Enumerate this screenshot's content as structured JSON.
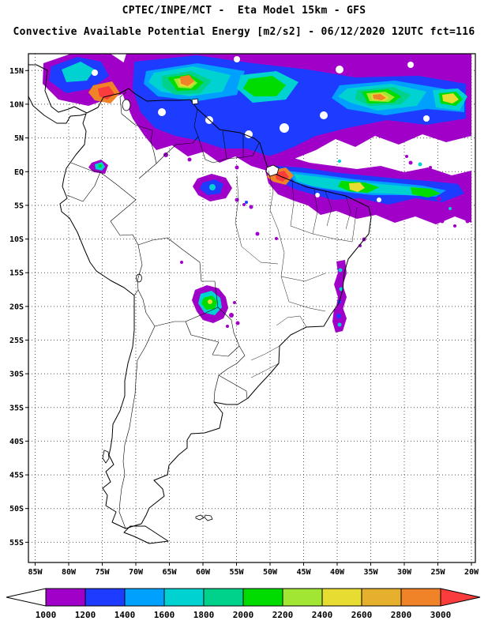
{
  "header": {
    "title": "CPTEC/INPE/MCT -  Eta Model 15km - GFS",
    "subtitle": "Convective Available Potential Energy [m2/s2] - 06/12/2020 12UTC fct=116"
  },
  "map": {
    "lat_ticks": [
      "15N",
      "10N",
      "5N",
      "EQ",
      "5S",
      "10S",
      "15S",
      "20S",
      "25S",
      "30S",
      "35S",
      "40S",
      "45S",
      "50S",
      "55S"
    ],
    "lon_ticks": [
      "85W",
      "80W",
      "75W",
      "70W",
      "65W",
      "60W",
      "55W",
      "50W",
      "45W",
      "40W",
      "35W",
      "30W",
      "25W",
      "20W"
    ]
  },
  "colorbar": {
    "tick_labels": [
      "1000",
      "1200",
      "1400",
      "1600",
      "1800",
      "2000",
      "2200",
      "2400",
      "2600",
      "2800",
      "3000"
    ],
    "segment_colors": [
      "#a000c8",
      "#1e3cff",
      "#00a0ff",
      "#00d2d2",
      "#00d28c",
      "#00dc00",
      "#a0e632",
      "#e6dc32",
      "#e6af2d",
      "#f08228"
    ],
    "below_min_color": "#ffffff",
    "above_max_color": "#fa3c3c",
    "outline_color": "#000000"
  },
  "chart_data": {
    "type": "filled-contour-map",
    "variable": "Convective Available Potential Energy",
    "units": "m2/s2",
    "model": "Eta Model 15km",
    "boundary_model": "GFS",
    "valid": "06/12/2020 12UTC",
    "forecast": "fct=116",
    "lon_range": [
      "85W",
      "20W"
    ],
    "lat_range": [
      "55S",
      "15N"
    ],
    "scale_levels": [
      1000,
      1200,
      1400,
      1600,
      1800,
      2000,
      2200,
      2400,
      2600,
      2800,
      3000
    ],
    "scale_colors": [
      "#a000c8",
      "#1e3cff",
      "#00a0ff",
      "#00d2d2",
      "#00d28c",
      "#00dc00",
      "#a0e632",
      "#e6dc32",
      "#e6af2d",
      "#f08228",
      "#fa3c3c"
    ],
    "legend_position": "bottom"
  }
}
